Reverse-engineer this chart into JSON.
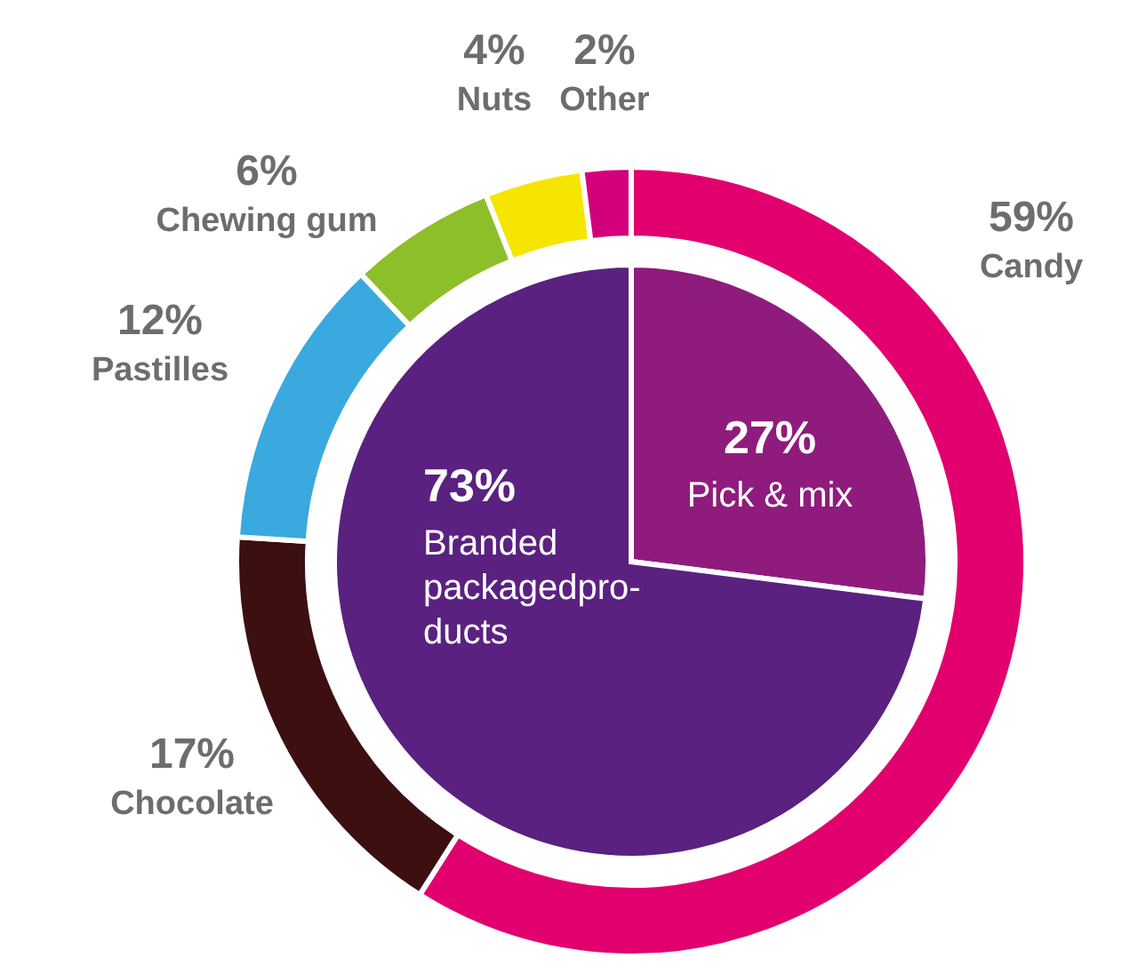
{
  "chart_data": [
    {
      "type": "donut",
      "categories": [
        "Candy",
        "Chocolate",
        "Pastilles",
        "Chewing gum",
        "Nuts",
        "Other"
      ],
      "values": [
        59,
        17,
        12,
        6,
        4,
        2
      ],
      "colors": [
        "#e2006f",
        "#3d0f10",
        "#39a9df",
        "#8dbf2a",
        "#f6e500",
        "#d3007c"
      ],
      "value_labels": [
        "59%",
        "17%",
        "12%",
        "6%",
        "4%",
        "2%"
      ]
    },
    {
      "type": "pie",
      "categories": [
        "Pick & mix",
        "Branded packagedpro-ducts"
      ],
      "values": [
        27,
        73
      ],
      "colors": [
        "#8f1c7d",
        "#5a2181"
      ],
      "value_labels": [
        "27%",
        "73%"
      ]
    }
  ]
}
